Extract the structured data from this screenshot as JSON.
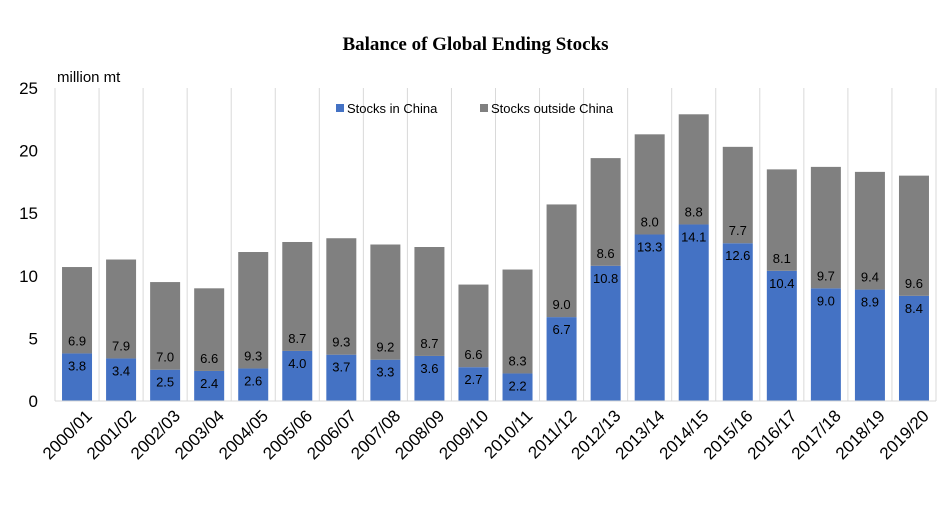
{
  "chart_data": {
    "type": "bar",
    "stacked": true,
    "title": "Balance of Global Ending Stocks",
    "ylabel": "million  mt",
    "xlabel": "",
    "ylim": [
      0,
      25
    ],
    "yticks": [
      0,
      5,
      10,
      15,
      20,
      25
    ],
    "grid": "vertical",
    "legend_position": "top-center",
    "categories": [
      "2000/01",
      "2001/02",
      "2002/03",
      "2003/04",
      "2004/05",
      "2005/06",
      "2006/07",
      "2007/08",
      "2008/09",
      "2009/10",
      "2010/11",
      "2011/12",
      "2012/13",
      "2013/14",
      "2014/15",
      "2015/16",
      "2016/17",
      "2017/18",
      "2018/19",
      "2019/20"
    ],
    "series": [
      {
        "name": "Stocks in China",
        "color": "#4472c4",
        "values": [
          3.8,
          3.4,
          2.5,
          2.4,
          2.6,
          4.0,
          3.7,
          3.3,
          3.6,
          2.7,
          2.2,
          6.7,
          10.8,
          13.3,
          14.1,
          12.6,
          10.4,
          9.0,
          8.9,
          8.4
        ]
      },
      {
        "name": "Stocks outside China",
        "color": "#808080",
        "values": [
          6.9,
          7.9,
          7.0,
          6.6,
          9.3,
          8.7,
          9.3,
          9.2,
          8.7,
          6.6,
          8.3,
          9.0,
          8.6,
          8.0,
          8.8,
          7.7,
          8.1,
          9.7,
          9.4,
          9.6
        ]
      }
    ]
  }
}
